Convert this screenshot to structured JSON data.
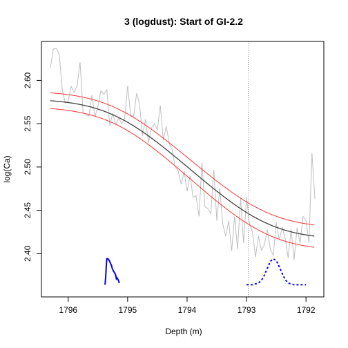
{
  "chart_data": {
    "type": "line",
    "title": "3 (logdust): Start of GI-2.2",
    "xlabel": "Depth (m)",
    "ylabel": "log(Ca)",
    "xlim": [
      1796.45,
      1791.7
    ],
    "ylim": [
      2.35,
      2.645
    ],
    "x_reversed": true,
    "x_ticks": [
      1796,
      1795,
      1794,
      1793,
      1792
    ],
    "y_ticks": [
      2.4,
      2.45,
      2.5,
      2.55,
      2.6
    ],
    "y_tick_labels": [
      "2.40",
      "2.45",
      "2.50",
      "2.55",
      "2.60"
    ],
    "x_tick_labels": [
      "1796",
      "1795",
      "1794",
      "1793",
      "1792"
    ],
    "dotted_vline_x": 1792.97,
    "colors": {
      "data": "#bebebe",
      "fit": "#404040",
      "band": "#ff3030",
      "density": "#0000ee",
      "vline": "#808080"
    },
    "ramp_fit": {
      "x_start": 1795.2,
      "x_end": 1792.7,
      "y_start": 2.579,
      "y_end": 2.416,
      "x_min": 1796.3,
      "x_max": 1791.85
    },
    "upper_band": {
      "y_start": 2.588,
      "y_end": 2.429
    },
    "lower_band": {
      "y_start": 2.57,
      "y_end": 2.403
    },
    "series": [
      {
        "x": [
          1796.3,
          1796.25,
          1796.2,
          1796.15,
          1796.1,
          1796.05,
          1796.0,
          1795.95,
          1795.9,
          1795.85,
          1795.8,
          1795.75,
          1795.7,
          1795.65,
          1795.6,
          1795.55,
          1795.5,
          1795.45,
          1795.4,
          1795.35,
          1795.3,
          1795.25,
          1795.2,
          1795.15,
          1795.1,
          1795.05,
          1795.0,
          1794.95,
          1794.9,
          1794.85,
          1794.8,
          1794.75,
          1794.7,
          1794.65,
          1794.6,
          1794.55,
          1794.5,
          1794.45,
          1794.4,
          1794.35,
          1794.3,
          1794.25,
          1794.2,
          1794.15,
          1794.1,
          1794.05,
          1794.0,
          1793.95,
          1793.9,
          1793.85,
          1793.8,
          1793.75,
          1793.7,
          1793.65,
          1793.6,
          1793.55,
          1793.5,
          1793.45,
          1793.4,
          1793.35,
          1793.3,
          1793.25,
          1793.2,
          1793.15,
          1793.1,
          1793.05,
          1793.0,
          1792.95,
          1792.9,
          1792.85,
          1792.8,
          1792.75,
          1792.7,
          1792.65,
          1792.6,
          1792.55,
          1792.5,
          1792.45,
          1792.4,
          1792.35,
          1792.3,
          1792.25,
          1792.2,
          1792.15,
          1792.1,
          1792.05,
          1792.0,
          1791.95,
          1791.9,
          1791.85
        ],
        "y": [
          2.614,
          2.636,
          2.637,
          2.63,
          2.59,
          2.574,
          2.576,
          2.593,
          2.586,
          2.594,
          2.621,
          2.562,
          2.56,
          2.559,
          2.583,
          2.558,
          2.57,
          2.588,
          2.584,
          2.589,
          2.548,
          2.562,
          2.549,
          2.557,
          2.55,
          2.556,
          2.594,
          2.56,
          2.558,
          2.585,
          2.573,
          2.536,
          2.555,
          2.528,
          2.545,
          2.55,
          2.543,
          2.571,
          2.531,
          2.547,
          2.527,
          2.52,
          2.5,
          2.496,
          2.48,
          2.495,
          2.472,
          2.49,
          2.465,
          2.467,
          2.443,
          2.505,
          2.454,
          2.452,
          2.446,
          2.497,
          2.438,
          2.476,
          2.434,
          2.42,
          2.438,
          2.403,
          2.443,
          2.405,
          2.464,
          2.412,
          2.465,
          2.434,
          2.425,
          2.396,
          2.42,
          2.404,
          2.41,
          2.428,
          2.405,
          2.398,
          2.436,
          2.416,
          2.43,
          2.418,
          2.395,
          2.428,
          2.393,
          2.43,
          2.412,
          2.443,
          2.438,
          2.412,
          2.516,
          2.463
        ]
      }
    ],
    "density_curves": [
      {
        "name": "",
        "style": "solid",
        "x": [
          1795.38,
          1795.37,
          1795.36,
          1795.35,
          1795.33,
          1795.31,
          1795.29,
          1795.27,
          1795.26,
          1795.24,
          1795.22,
          1795.2,
          1795.19,
          1795.18,
          1795.16,
          1795.15,
          1795.14
        ],
        "y": [
          2.364,
          2.372,
          2.385,
          2.394,
          2.394,
          2.392,
          2.389,
          2.386,
          2.383,
          2.38,
          2.378,
          2.375,
          2.371,
          2.372,
          2.37,
          2.368,
          2.366
        ]
      },
      {
        "name": "",
        "style": "dashed",
        "x": [
          1793.0,
          1792.95,
          1792.9,
          1792.85,
          1792.8,
          1792.75,
          1792.7,
          1792.65,
          1792.6,
          1792.55,
          1792.5,
          1792.45,
          1792.4,
          1792.35,
          1792.3,
          1792.25,
          1792.2,
          1792.15,
          1792.1,
          1792.05,
          1792.0
        ],
        "y": [
          2.364,
          2.364,
          2.364,
          2.365,
          2.366,
          2.369,
          2.375,
          2.383,
          2.391,
          2.394,
          2.392,
          2.385,
          2.377,
          2.37,
          2.366,
          2.365,
          2.364,
          2.364,
          2.364,
          2.364,
          2.364
        ]
      }
    ]
  }
}
